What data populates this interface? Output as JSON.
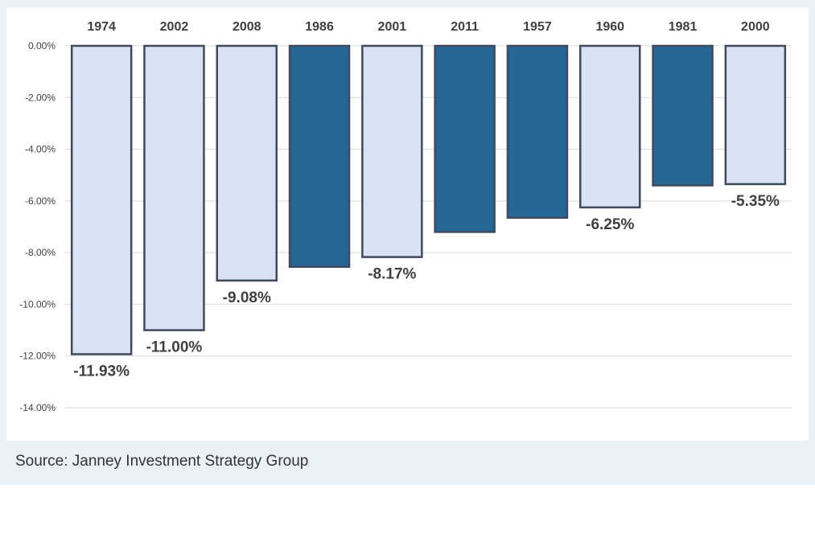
{
  "chart_data": {
    "type": "bar",
    "title": "",
    "xlabel": "",
    "ylabel": "",
    "categories": [
      "1974",
      "2002",
      "2008",
      "1986",
      "2001",
      "2011",
      "1957",
      "1960",
      "1981",
      "2000"
    ],
    "values": [
      -11.93,
      -11.0,
      -9.08,
      -8.55,
      -8.17,
      -7.2,
      -6.65,
      -6.25,
      -5.4,
      -5.35
    ],
    "data_labels": [
      "-11.93%",
      "-11.00%",
      "-9.08%",
      "",
      "-8.17%",
      "",
      "",
      "-6.25%",
      "",
      "-5.35%"
    ],
    "highlight": [
      false,
      false,
      false,
      true,
      false,
      true,
      true,
      false,
      true,
      false
    ],
    "ylim": [
      -14,
      0
    ],
    "yticks": [
      0,
      -2,
      -4,
      -6,
      -8,
      -10,
      -12,
      -14
    ],
    "ytick_labels": [
      "0.00%",
      "-2.00%",
      "-4.00%",
      "-6.00%",
      "-8.00%",
      "-10.00%",
      "-12.00%",
      "-14.00%"
    ],
    "grid": true,
    "colors": {
      "light": "#d9e2f3",
      "dark": "#266796",
      "outline": "#3f4a5f",
      "grid": "#d9d9d9",
      "text": "#404040"
    }
  },
  "footer": {
    "source": "Source: Janney Investment Strategy Group"
  }
}
